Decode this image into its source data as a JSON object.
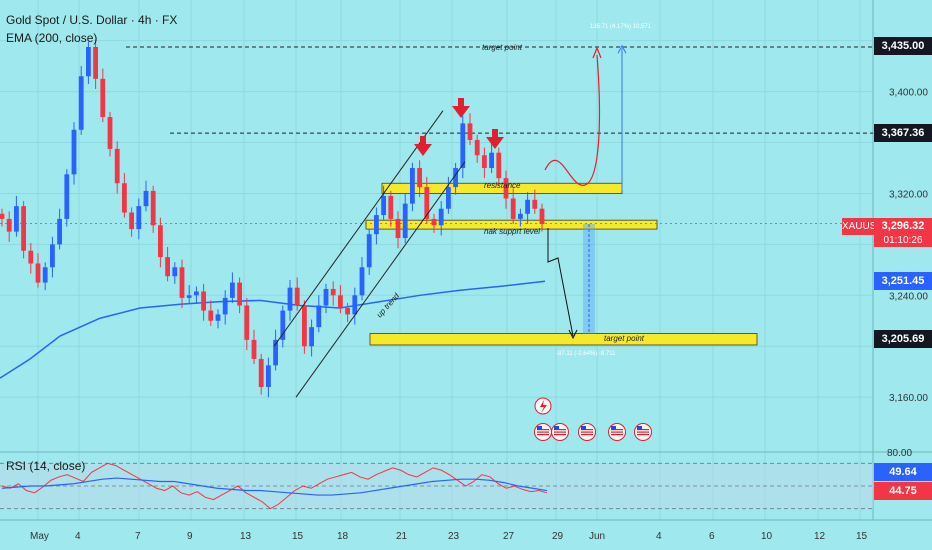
{
  "header": {
    "title": "Gold Spot / U.S. Dollar · 4h · FX",
    "indicator": "EMA (200, close)",
    "rsi_label": "RSI (14, close)"
  },
  "price_tags": {
    "target_high": "3,435.00",
    "level_3367": "3,367.36",
    "symbol": "XAUUSD",
    "last_price": "3,296.32",
    "countdown": "01:10:26",
    "ema": "3,251.45",
    "target_low": "3,205.69",
    "rsi_value": "49.64",
    "rsi_ma_value": "44.75",
    "rsi_axis_top": "80.00"
  },
  "annotations": {
    "target_top": "target point",
    "resistance": "resistance",
    "support": "nak supprt level",
    "target_bottom": "target point",
    "up_trend": "up trend",
    "measure_up": "135.71 (4.17%) 10,571",
    "measure_down": "-87.11 (-2.64%) -8,711"
  },
  "colors": {
    "background": "#9ee8ee",
    "bull": "#2962ff",
    "bear": "#f23645",
    "ema": "#2962ff",
    "zone": "#f5e92a",
    "rsi": "#f23645",
    "rsi_ma": "#2962ff"
  },
  "chart_data": {
    "type": "candlestick",
    "symbol": "XAUUSD",
    "timeframe": "4h",
    "y_ticks": [
      3160,
      3200,
      3240,
      3280,
      3320,
      3360,
      3400,
      3440
    ],
    "y_tick_labels": [
      "3,160.00",
      "",
      "3,240.00",
      "",
      "3,320.00",
      "",
      "3,400.00",
      ""
    ],
    "ylim": [
      3140,
      3450
    ],
    "x_tick_labels": [
      "May",
      "4",
      "7",
      "9",
      "13",
      "15",
      "18",
      "21",
      "23",
      "27",
      "29",
      "Jun",
      "4",
      "6",
      "10",
      "12",
      "15"
    ],
    "key_levels": [
      3435.0,
      3367.36,
      3296.32,
      3251.45,
      3205.69
    ],
    "zones": [
      {
        "name": "resistance",
        "low": 3320,
        "high": 3328
      },
      {
        "name": "support",
        "low": 3292,
        "high": 3299
      },
      {
        "name": "target point",
        "low": 3201,
        "high": 3210
      }
    ],
    "close_path": [
      3300,
      3290,
      3310,
      3275,
      3265,
      3250,
      3262,
      3280,
      3300,
      3335,
      3370,
      3412,
      3435,
      3410,
      3380,
      3355,
      3328,
      3305,
      3292,
      3310,
      3322,
      3295,
      3270,
      3255,
      3262,
      3238,
      3240,
      3243,
      3228,
      3220,
      3225,
      3238,
      3250,
      3232,
      3205,
      3190,
      3168,
      3185,
      3205,
      3228,
      3246,
      3232,
      3200,
      3215,
      3232,
      3245,
      3240,
      3230,
      3225,
      3240,
      3262,
      3288,
      3303,
      3318,
      3300,
      3285,
      3312,
      3340,
      3325,
      3300,
      3295,
      3308,
      3325,
      3340,
      3375,
      3362,
      3350,
      3340,
      3352,
      3332,
      3316,
      3300,
      3304,
      3315,
      3308,
      3296
    ],
    "ema_points": [
      [
        0,
        3175
      ],
      [
        30,
        3190
      ],
      [
        60,
        3208
      ],
      [
        100,
        3222
      ],
      [
        140,
        3230
      ],
      [
        180,
        3233
      ],
      [
        220,
        3235
      ],
      [
        260,
        3236
      ],
      [
        300,
        3232
      ],
      [
        340,
        3230
      ],
      [
        380,
        3235
      ],
      [
        420,
        3240
      ],
      [
        460,
        3244
      ],
      [
        500,
        3247
      ],
      [
        545,
        3251
      ]
    ],
    "rsi": {
      "ylim": [
        20,
        80
      ],
      "last": 49.64,
      "ma_last": 44.75
    }
  }
}
